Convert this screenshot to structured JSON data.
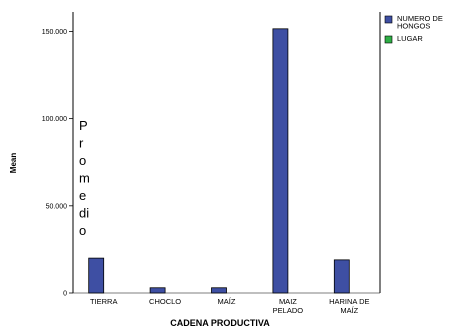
{
  "chart_data": {
    "type": "bar",
    "categories": [
      "TIERRA",
      "CHOCLO",
      "MAÍZ",
      "MAIZ PELADO",
      "HARINA DE MAÍZ"
    ],
    "category_lines": [
      [
        "TIERRA"
      ],
      [
        "CHOCLO"
      ],
      [
        "MAÍZ"
      ],
      [
        "MAIZ",
        "PELADO"
      ],
      [
        "HARINA DE",
        "MAÍZ"
      ]
    ],
    "series": [
      {
        "name": "NUMERO DE HONGOS",
        "legend_lines": [
          "NUMERO DE",
          "HONGOS"
        ],
        "color": "#3e4fa3",
        "values": [
          20000,
          3000,
          3000,
          151500,
          19000
        ]
      },
      {
        "name": "LUGAR",
        "legend_lines": [
          "LUGAR"
        ],
        "color": "#2eae45",
        "values": [
          0,
          0,
          0,
          0,
          0
        ]
      }
    ],
    "xlabel": "CADENA PRODUCTIVA",
    "ylabel": "Mean",
    "ylim": [
      0,
      160000
    ],
    "yticks": [
      0,
      50000,
      100000,
      150000
    ],
    "ytick_labels": [
      "0",
      "50.000",
      "100.000",
      "150.000"
    ],
    "overlay_lines": [
      "P",
      "r",
      "o",
      "m",
      "e",
      "di",
      "o"
    ],
    "grid": false,
    "legend_position": "top-right"
  }
}
